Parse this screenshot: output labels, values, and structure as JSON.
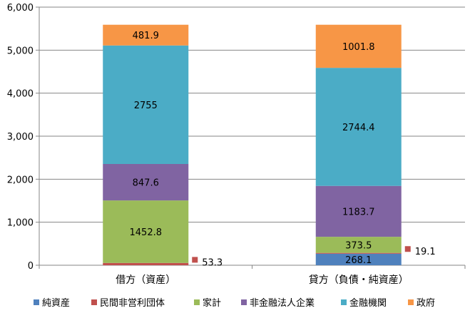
{
  "chart_data": {
    "type": "bar",
    "stacked": true,
    "categories": [
      "借方（資産）",
      "貸方（負債・純資産）"
    ],
    "ylim": [
      0,
      6000
    ],
    "yticks": [
      0,
      1000,
      2000,
      3000,
      4000,
      5000,
      6000
    ],
    "ytick_labels": [
      "0",
      "1,000",
      "2,000",
      "3,000",
      "4,000",
      "5,000",
      "6,000"
    ],
    "grid": true,
    "legend_position": "bottom",
    "series": [
      {
        "name": "純資産",
        "color": "#4F81BD",
        "values": [
          0,
          268.1
        ],
        "labels": [
          "",
          "268.1"
        ]
      },
      {
        "name": "民間非営利団体",
        "color": "#C0504D",
        "values": [
          53.3,
          19.1
        ],
        "labels": [
          "53.3",
          "19.1"
        ]
      },
      {
        "name": "家計",
        "color": "#9BBB59",
        "values": [
          1452.8,
          373.5
        ],
        "labels": [
          "1452.8",
          "373.5"
        ]
      },
      {
        "name": "非金融法人企業",
        "color": "#8064A2",
        "values": [
          847.6,
          1183.7
        ],
        "labels": [
          "847.6",
          "1183.7"
        ]
      },
      {
        "name": "金融機関",
        "color": "#4BACC6",
        "values": [
          2755,
          2744.4
        ],
        "labels": [
          "2755",
          "2744.4"
        ]
      },
      {
        "name": "政府",
        "color": "#F79646",
        "values": [
          481.9,
          1001.8
        ],
        "labels": [
          "481.9",
          "1001.8"
        ]
      }
    ]
  }
}
